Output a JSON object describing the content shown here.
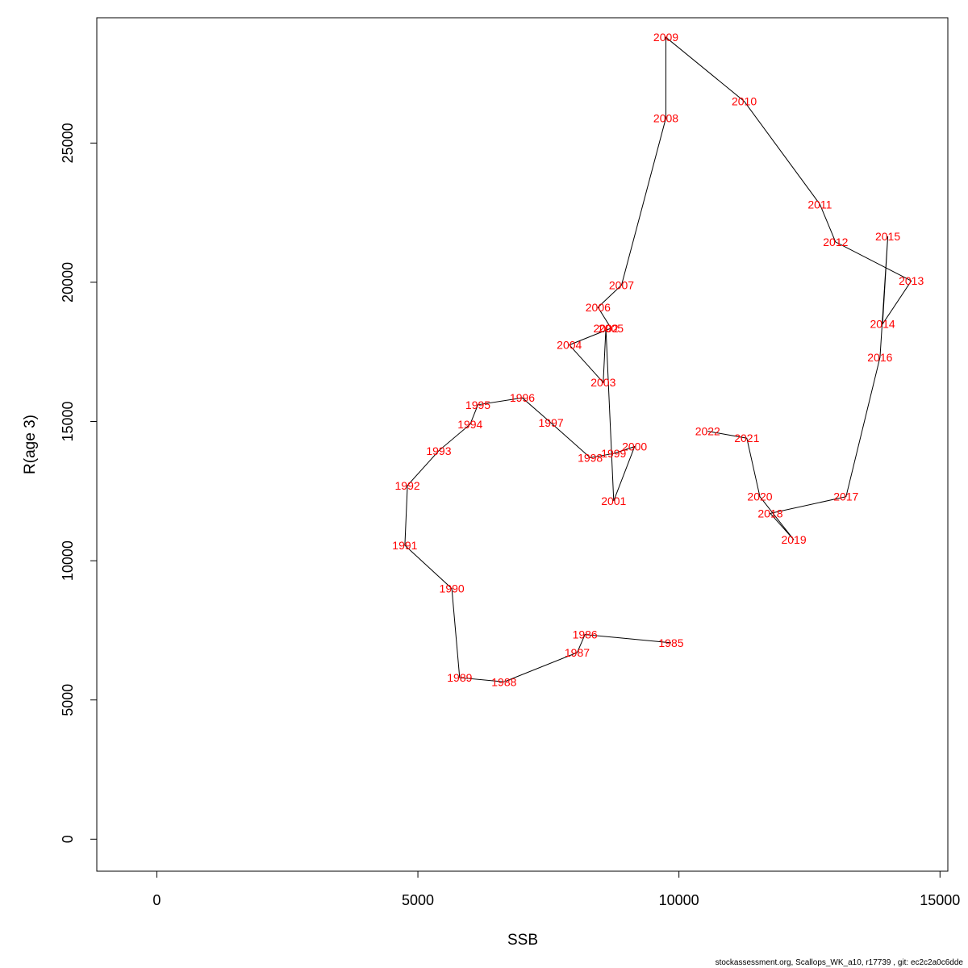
{
  "chart_data": {
    "type": "line",
    "title": "",
    "xlabel": "SSB",
    "ylabel": "R(age 3)",
    "xlim": [
      -1150,
      15150
    ],
    "ylim": [
      -1150,
      29500
    ],
    "xticks": [
      0,
      5000,
      10000,
      15000
    ],
    "yticks": [
      0,
      5000,
      10000,
      15000,
      20000,
      25000
    ],
    "grid": false,
    "legend": "none",
    "line_color": "#000000",
    "label_color": "#ff0000",
    "points": [
      {
        "label": "1985",
        "x": 9850,
        "y": 7050
      },
      {
        "label": "1986",
        "x": 8200,
        "y": 7350
      },
      {
        "label": "1987",
        "x": 8050,
        "y": 6700
      },
      {
        "label": "1988",
        "x": 6650,
        "y": 5650
      },
      {
        "label": "1989",
        "x": 5800,
        "y": 5800
      },
      {
        "label": "1990",
        "x": 5650,
        "y": 9000
      },
      {
        "label": "1991",
        "x": 4750,
        "y": 10550
      },
      {
        "label": "1992",
        "x": 4800,
        "y": 12700
      },
      {
        "label": "1993",
        "x": 5400,
        "y": 13950
      },
      {
        "label": "1994",
        "x": 6000,
        "y": 14900
      },
      {
        "label": "1995",
        "x": 6150,
        "y": 15600
      },
      {
        "label": "1996",
        "x": 7000,
        "y": 15850
      },
      {
        "label": "1997",
        "x": 7550,
        "y": 14950
      },
      {
        "label": "1998",
        "x": 8300,
        "y": 13700
      },
      {
        "label": "1999",
        "x": 8750,
        "y": 13850
      },
      {
        "label": "2000",
        "x": 9150,
        "y": 14100
      },
      {
        "label": "2001",
        "x": 8750,
        "y": 12150
      },
      {
        "label": "2002",
        "x": 8600,
        "y": 18350
      },
      {
        "label": "2003",
        "x": 8550,
        "y": 16400
      },
      {
        "label": "2004",
        "x": 7900,
        "y": 17750
      },
      {
        "label": "2005",
        "x": 8700,
        "y": 18350
      },
      {
        "label": "2006",
        "x": 8450,
        "y": 19100
      },
      {
        "label": "2007",
        "x": 8900,
        "y": 19900
      },
      {
        "label": "2008",
        "x": 9750,
        "y": 25900
      },
      {
        "label": "2009",
        "x": 9750,
        "y": 28800
      },
      {
        "label": "2010",
        "x": 11250,
        "y": 26500
      },
      {
        "label": "2011",
        "x": 12700,
        "y": 22800
      },
      {
        "label": "2012",
        "x": 13000,
        "y": 21450
      },
      {
        "label": "2013",
        "x": 14450,
        "y": 20050
      },
      {
        "label": "2014",
        "x": 13900,
        "y": 18500
      },
      {
        "label": "2015",
        "x": 14000,
        "y": 21650
      },
      {
        "label": "2016",
        "x": 13850,
        "y": 17300
      },
      {
        "label": "2017",
        "x": 13200,
        "y": 12300
      },
      {
        "label": "2018",
        "x": 11750,
        "y": 11700
      },
      {
        "label": "2019",
        "x": 12200,
        "y": 10750
      },
      {
        "label": "2020",
        "x": 11550,
        "y": 12300
      },
      {
        "label": "2021",
        "x": 11300,
        "y": 14400
      },
      {
        "label": "2022",
        "x": 10550,
        "y": 14650
      }
    ]
  },
  "footer_text": "stockassessment.org, Scallops_WK_a10, r17739 , git: ec2c2a0c6dde"
}
